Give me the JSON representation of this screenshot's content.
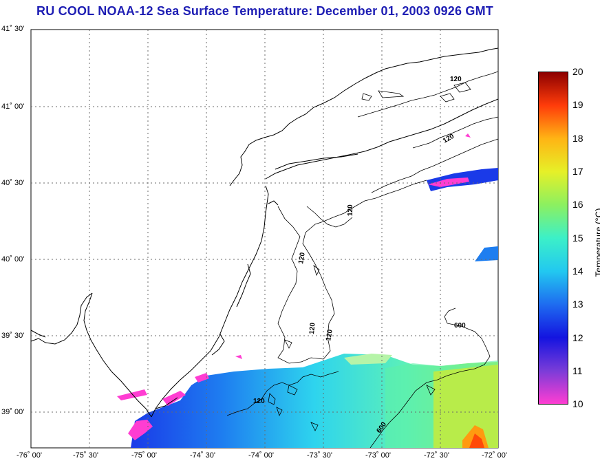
{
  "title": "RU COOL  NOAA-12  Sea Surface Temperature:  December 01, 2003 0926 GMT",
  "lat_labels": [
    "41˚ 30'",
    "41˚ 00'",
    "40˚ 30'",
    "40˚ 00'",
    "39˚ 30'",
    "39˚ 00'"
  ],
  "lon_labels": [
    "-76˚ 00'",
    "-75˚ 30'",
    "-75˚ 00'",
    "-74˚ 30'",
    "-74˚ 00'",
    "-73˚ 30'",
    "-73˚ 00'",
    "-72˚ 30'",
    "-72˚ 00'"
  ],
  "contour_labels": [
    "120",
    "120",
    "120",
    "120",
    "120",
    "120",
    "600",
    "600",
    "120"
  ],
  "colorbar": {
    "ticks": [
      "20",
      "19",
      "18",
      "17",
      "16",
      "15",
      "14",
      "13",
      "12",
      "11",
      "10"
    ],
    "label": "Temperature (°C)",
    "min": 10,
    "max": 20,
    "colors": [
      "#ff3dd2",
      "#7a3cd8",
      "#1414e0",
      "#1e6cf0",
      "#22c8f0",
      "#3cf0c8",
      "#8cf060",
      "#e6f028",
      "#ffb414",
      "#ff3c0a",
      "#8c0000"
    ]
  }
}
